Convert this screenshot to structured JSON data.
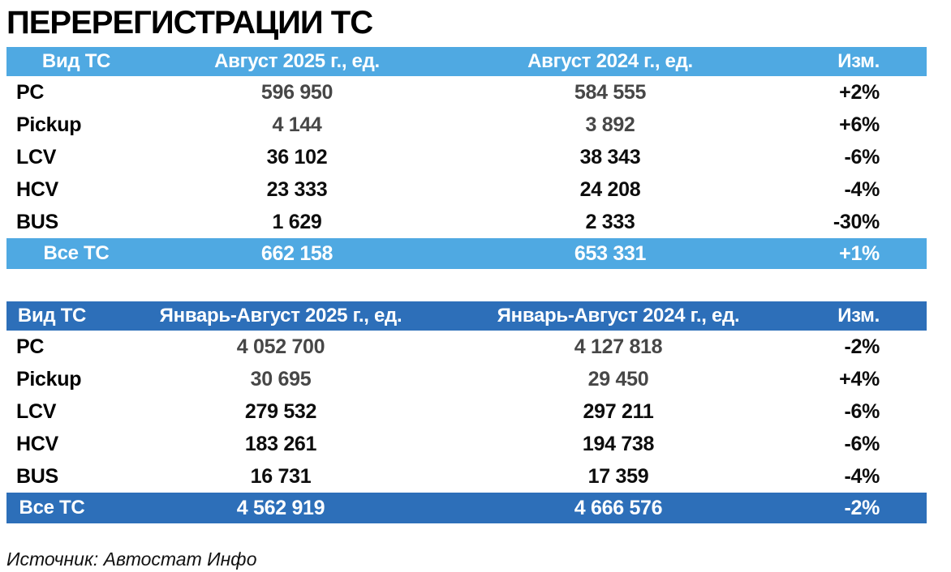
{
  "title": "ПЕРЕРЕГИСТРАЦИИ ТС",
  "source": "Источник: Автостат Инфо",
  "colors": {
    "light_blue": "#4FA9E2",
    "dark_blue": "#2D6FB9",
    "muted_text": "#474747"
  },
  "chart_data": [
    {
      "type": "table",
      "columns": [
        "Вид ТС",
        "Август 2025 г., ед.",
        "Август 2024 г., ед.",
        "Изм."
      ],
      "rows": [
        [
          "PC",
          "596 950",
          "584 555",
          "+2%"
        ],
        [
          "Pickup",
          "4 144",
          "3 892",
          "+6%"
        ],
        [
          "LCV",
          "36 102",
          "38 343",
          "-6%"
        ],
        [
          "HCV",
          "23 333",
          "24 208",
          "-4%"
        ],
        [
          "BUS",
          "1 629",
          "2 333",
          "-30%"
        ]
      ],
      "total_row": [
        "Все ТС",
        "662 158",
        "653 331",
        "+1%"
      ]
    },
    {
      "type": "table",
      "columns": [
        "Вид ТС",
        "Январь-Август 2025 г., ед.",
        "Январь-Август 2024 г., ед.",
        "Изм."
      ],
      "rows": [
        [
          "PC",
          "4 052 700",
          "4 127 818",
          "-2%"
        ],
        [
          "Pickup",
          "30 695",
          "29 450",
          "+4%"
        ],
        [
          "LCV",
          "279 532",
          "297 211",
          "-6%"
        ],
        [
          "HCV",
          "183 261",
          "194 738",
          "-6%"
        ],
        [
          "BUS",
          "16 731",
          "17 359",
          "-4%"
        ]
      ],
      "total_row": [
        "Все ТС",
        "4 562 919",
        "4 666 576",
        "-2%"
      ]
    }
  ]
}
